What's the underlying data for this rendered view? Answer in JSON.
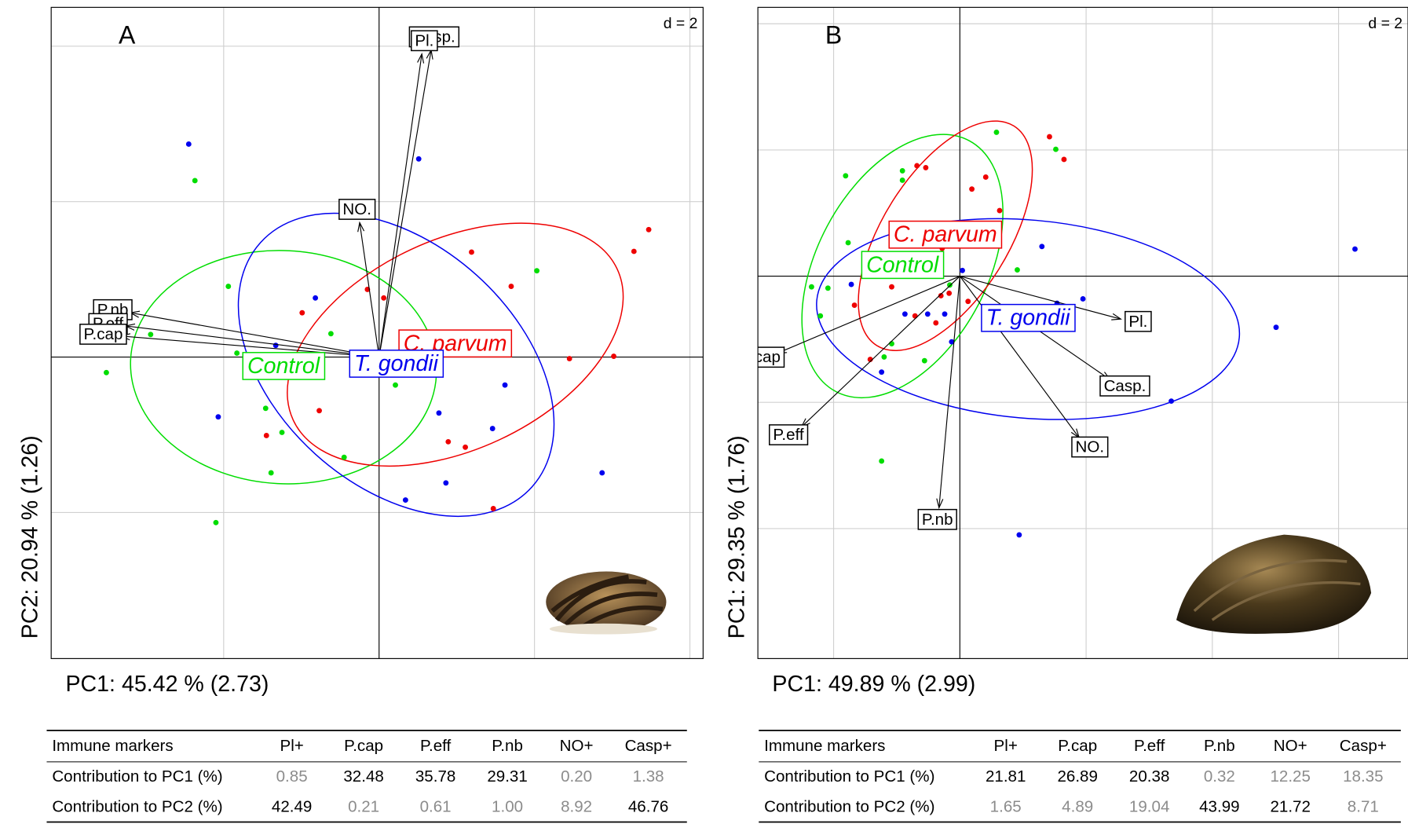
{
  "chart_data": [
    {
      "type": "scatter",
      "panel_label": "A",
      "scale_label": "d = 2",
      "x_label": "PC1: 45.42 % (2.73)",
      "y_label": "PC2: 20.94 % (1.26)",
      "xlim": [
        -4.22,
        4.17
      ],
      "ylim": [
        -3.88,
        4.5
      ],
      "xgrid": [
        -2,
        2,
        4
      ],
      "ygrid": [
        -2,
        2,
        4
      ],
      "grid": true,
      "series": [
        {
          "name": "Control",
          "color": "#00dd00",
          "x": [
            -2.37,
            -1.94,
            -2.94,
            -3.51,
            -1.83,
            -0.62,
            0.21,
            -1.46,
            -1.25,
            -0.45,
            -1.39,
            -2.1,
            2.03
          ],
          "y": [
            2.27,
            0.91,
            0.29,
            -0.2,
            0.05,
            0.3,
            -0.36,
            -0.66,
            -0.97,
            -1.29,
            -1.49,
            -2.13,
            1.11
          ],
          "ellipse": {
            "cx": -1.23,
            "cy": -0.13,
            "rx": 1.97,
            "ry": 1.5,
            "angle": -3
          }
        },
        {
          "name": "C. parvum",
          "color": "#ee0000",
          "x": [
            3.47,
            3.28,
            1.19,
            1.7,
            -0.15,
            0.06,
            -0.99,
            3.02,
            2.45,
            -0.77,
            -1.45,
            0.89,
            1.11,
            1.47
          ],
          "y": [
            1.64,
            1.36,
            1.35,
            0.91,
            0.87,
            0.76,
            0.57,
            0.01,
            -0.02,
            -0.69,
            -1.01,
            -1.09,
            -1.16,
            -1.95
          ],
          "ellipse": {
            "cx": 0.98,
            "cy": 0.16,
            "rx": 2.3,
            "ry": 1.35,
            "angle": 25
          }
        },
        {
          "name": "T. gondii",
          "color": "#0000ee",
          "x": [
            -2.45,
            0.51,
            -0.82,
            -1.33,
            -2.07,
            0.77,
            1.62,
            1.46,
            0.86,
            0.34,
            2.87
          ],
          "y": [
            2.74,
            2.55,
            0.76,
            0.15,
            -0.77,
            -0.72,
            -0.36,
            -0.92,
            -1.62,
            -1.84,
            -1.49
          ],
          "ellipse": {
            "cx": 0.22,
            "cy": -0.1,
            "rx": 2.35,
            "ry": 1.55,
            "angle": -42
          }
        }
      ],
      "arrows": [
        {
          "label": "Casp.",
          "x": 0.67,
          "y": 3.95
        },
        {
          "label": "Pl.",
          "x": 0.55,
          "y": 3.9
        },
        {
          "label": "NO.",
          "x": -0.25,
          "y": 1.73
        },
        {
          "label": "P.nb",
          "x": -3.2,
          "y": 0.57
        },
        {
          "label": "P.eff",
          "x": -3.26,
          "y": 0.4
        },
        {
          "label": "P.cap",
          "x": -3.32,
          "y": 0.27
        }
      ]
    },
    {
      "type": "scatter",
      "panel_label": "B",
      "scale_label": "d = 2",
      "x_label": "PC1: 49.89 % (2.99)",
      "y_label": "PC1: 29.35 % (1.76)",
      "xlim": [
        -3.2,
        7.1
      ],
      "ylim": [
        -6.06,
        4.26
      ],
      "xgrid": [
        -2,
        2,
        4,
        6
      ],
      "ygrid": [
        -4,
        -2,
        2,
        4
      ],
      "grid": true,
      "series": [
        {
          "name": "Control",
          "color": "#00dd00",
          "x": [
            0.58,
            1.52,
            -1.81,
            -0.91,
            -0.91,
            -1.77,
            0.91,
            -2.35,
            -2.09,
            -2.21,
            -0.16,
            -1.08,
            -1.2,
            -0.56,
            -1.24
          ],
          "y": [
            2.28,
            2.01,
            1.59,
            1.67,
            1.52,
            0.53,
            0.1,
            -0.17,
            -0.19,
            -0.63,
            -0.14,
            -1.07,
            -1.28,
            -1.34,
            -2.93
          ],
          "ellipse": {
            "cx": -0.91,
            "cy": 0.16,
            "rx": 2.25,
            "ry": 1.35,
            "angle": 62
          }
        },
        {
          "name": "C. parvum",
          "color": "#ee0000",
          "x": [
            1.42,
            1.65,
            -0.68,
            -0.54,
            0.41,
            0.19,
            0.63,
            -0.28,
            -1.08,
            -0.3,
            -0.17,
            0.13,
            -1.67,
            -0.71,
            -0.38,
            -1.42
          ],
          "y": [
            2.21,
            1.85,
            1.75,
            1.72,
            1.57,
            1.38,
            1.04,
            0.44,
            -0.17,
            -0.31,
            -0.27,
            -0.4,
            -0.46,
            -0.63,
            -0.74,
            -1.32
          ],
          "ellipse": {
            "cx": -0.23,
            "cy": 0.64,
            "rx": 2.05,
            "ry": 1.0,
            "angle": 58
          }
        },
        {
          "name": "T. gondii",
          "color": "#0000ee",
          "x": [
            6.26,
            1.3,
            0.04,
            -1.72,
            1.95,
            1.54,
            -0.51,
            -0.24,
            -0.87,
            -0.13,
            5.01,
            -1.24,
            2.52,
            3.35,
            0.94
          ],
          "y": [
            0.43,
            0.47,
            0.09,
            -0.13,
            -0.36,
            -0.43,
            -0.6,
            -0.6,
            -0.6,
            -1.04,
            -0.81,
            -1.52,
            -1.72,
            -1.98,
            -4.1
          ],
          "ellipse": {
            "cx": 1.08,
            "cy": -0.68,
            "rx": 3.36,
            "ry": 1.57,
            "angle": -5
          }
        }
      ],
      "arrows": [
        {
          "label": "Pl.",
          "x": 2.55,
          "y": -0.68
        },
        {
          "label": "Casp.",
          "x": 2.38,
          "y": -1.64
        },
        {
          "label": "NO.",
          "x": 1.89,
          "y": -2.56
        },
        {
          "label": "P.nb",
          "x": -0.33,
          "y": -3.67
        },
        {
          "label": "P.eff",
          "x": -2.51,
          "y": -2.39
        },
        {
          "label": "P.cap",
          "x": -2.89,
          "y": -1.22
        }
      ]
    }
  ],
  "tables": [
    {
      "header": [
        "Immune markers",
        "Pl+",
        "P.cap",
        "P.eff",
        "P.nb",
        "NO+",
        "Casp+"
      ],
      "rows": [
        [
          {
            "text": "Contribution to PC1 (%)",
            "strong": true
          },
          {
            "text": "0.85",
            "strong": false
          },
          {
            "text": "32.48",
            "strong": true
          },
          {
            "text": "35.78",
            "strong": true
          },
          {
            "text": "29.31",
            "strong": true
          },
          {
            "text": "0.20",
            "strong": false
          },
          {
            "text": "1.38",
            "strong": false
          }
        ],
        [
          {
            "text": "Contribution to PC2 (%)",
            "strong": true
          },
          {
            "text": "42.49",
            "strong": true
          },
          {
            "text": "0.21",
            "strong": false
          },
          {
            "text": "0.61",
            "strong": false
          },
          {
            "text": "1.00",
            "strong": false
          },
          {
            "text": "8.92",
            "strong": false
          },
          {
            "text": "46.76",
            "strong": true
          }
        ]
      ]
    },
    {
      "header": [
        "Immune markers",
        "Pl+",
        "P.cap",
        "P.eff",
        "P.nb",
        "NO+",
        "Casp+"
      ],
      "rows": [
        [
          {
            "text": "Contribution to PC1 (%)",
            "strong": true
          },
          {
            "text": "21.81",
            "strong": true
          },
          {
            "text": "26.89",
            "strong": true
          },
          {
            "text": "20.38",
            "strong": true
          },
          {
            "text": "0.32",
            "strong": false
          },
          {
            "text": "12.25",
            "strong": false
          },
          {
            "text": "18.35",
            "strong": false
          }
        ],
        [
          {
            "text": "Contribution to PC2 (%)",
            "strong": true
          },
          {
            "text": "1.65",
            "strong": false
          },
          {
            "text": "4.89",
            "strong": false
          },
          {
            "text": "19.04",
            "strong": false
          },
          {
            "text": "43.99",
            "strong": true
          },
          {
            "text": "21.72",
            "strong": true
          },
          {
            "text": "8.71",
            "strong": false
          }
        ]
      ]
    }
  ]
}
